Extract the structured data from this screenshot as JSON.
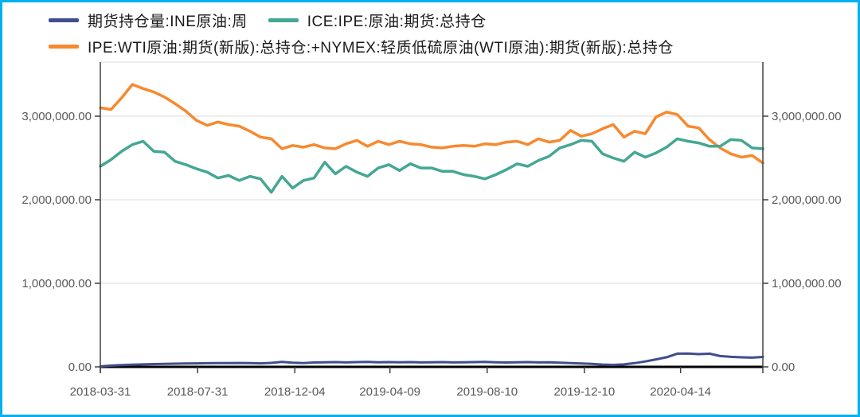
{
  "frame": {
    "border_color": "#00B0F0"
  },
  "legend": {
    "items": [
      {
        "key": "ine",
        "label": "期货持仓量:INE原油:周",
        "color": "#3F4E8C"
      },
      {
        "key": "ice",
        "label": "ICE:IPE:原油:期货:总持仓",
        "color": "#45A794"
      },
      {
        "key": "wti",
        "label": "IPE:WTI原油:期货(新版):总持仓:+NYMEX:轻质低硫原油(WTI原油):期货(新版):总持仓",
        "color": "#F7892F"
      }
    ]
  },
  "chart_data": {
    "type": "line",
    "title": "",
    "xlabel": "",
    "ylabel": "",
    "grid": "horizontal",
    "legend_position": "top-left",
    "x_unit": "weeks since 2018-03-31",
    "x_range": [
      0,
      124
    ],
    "ylim": [
      0,
      3300000
    ],
    "yticks": {
      "values": [
        0,
        1000000,
        2000000,
        3000000
      ],
      "labels": [
        "0.00",
        "1,000,000.00",
        "2,000,000.00",
        "3,000,000.00"
      ]
    },
    "xticks": [
      {
        "week": 0,
        "label": "2018-03-31"
      },
      {
        "week": 18.2,
        "label": "2018-07-31"
      },
      {
        "week": 36.4,
        "label": "2018-12-04"
      },
      {
        "week": 54.2,
        "label": "2019-04-09"
      },
      {
        "week": 72.4,
        "label": "2019-08-10"
      },
      {
        "week": 90.6,
        "label": "2019-12-10"
      },
      {
        "week": 108.6,
        "label": "2020-04-14"
      }
    ],
    "series": [
      {
        "key": "ipe-wti-nymex",
        "name": "IPE:WTI原油:期货(新版):总持仓:+NYMEX:轻质低硫原油(WTI原油):期货(新版):总持仓",
        "color": "#F7892F",
        "week_start": 0,
        "week_step": 2,
        "values": [
          3100000,
          3080000,
          3220000,
          3380000,
          3330000,
          3290000,
          3230000,
          3150000,
          3060000,
          2950000,
          2890000,
          2930000,
          2900000,
          2880000,
          2820000,
          2750000,
          2730000,
          2610000,
          2650000,
          2630000,
          2660000,
          2620000,
          2610000,
          2670000,
          2710000,
          2640000,
          2700000,
          2660000,
          2700000,
          2670000,
          2660000,
          2630000,
          2620000,
          2640000,
          2650000,
          2640000,
          2670000,
          2660000,
          2690000,
          2700000,
          2660000,
          2730000,
          2690000,
          2710000,
          2830000,
          2760000,
          2790000,
          2850000,
          2900000,
          2750000,
          2820000,
          2790000,
          2990000,
          3050000,
          3020000,
          2880000,
          2860000,
          2720000,
          2620000,
          2550000,
          2510000,
          2530000,
          2440000
        ]
      },
      {
        "key": "ice-ipe-brent",
        "name": "ICE:IPE:原油:期货:总持仓",
        "color": "#45A794",
        "week_start": 0,
        "week_step": 2,
        "values": [
          2400000,
          2480000,
          2580000,
          2660000,
          2700000,
          2580000,
          2570000,
          2460000,
          2420000,
          2370000,
          2330000,
          2260000,
          2290000,
          2230000,
          2280000,
          2250000,
          2090000,
          2280000,
          2140000,
          2230000,
          2260000,
          2450000,
          2310000,
          2400000,
          2330000,
          2280000,
          2380000,
          2420000,
          2350000,
          2430000,
          2380000,
          2380000,
          2340000,
          2340000,
          2300000,
          2280000,
          2250000,
          2300000,
          2360000,
          2430000,
          2400000,
          2470000,
          2520000,
          2620000,
          2660000,
          2710000,
          2700000,
          2550000,
          2500000,
          2460000,
          2570000,
          2510000,
          2560000,
          2630000,
          2730000,
          2700000,
          2680000,
          2640000,
          2640000,
          2720000,
          2710000,
          2620000,
          2610000
        ]
      },
      {
        "key": "ine-crude",
        "name": "期货持仓量:INE原油:周",
        "color": "#3F4E8C",
        "week_start": 0,
        "week_step": 2,
        "values": [
          5000,
          15000,
          22000,
          27000,
          30000,
          33000,
          36000,
          38000,
          40000,
          42000,
          44000,
          45000,
          46000,
          47000,
          45000,
          42000,
          48000,
          60000,
          50000,
          46000,
          52000,
          55000,
          57000,
          53000,
          57000,
          60000,
          55000,
          57000,
          55000,
          57000,
          53000,
          55000,
          57000,
          53000,
          55000,
          57000,
          60000,
          55000,
          52000,
          55000,
          57000,
          53000,
          55000,
          50000,
          45000,
          40000,
          35000,
          28000,
          24000,
          30000,
          45000,
          65000,
          90000,
          115000,
          158000,
          160000,
          152000,
          158000,
          130000,
          120000,
          114000,
          110000,
          119000
        ]
      }
    ]
  }
}
